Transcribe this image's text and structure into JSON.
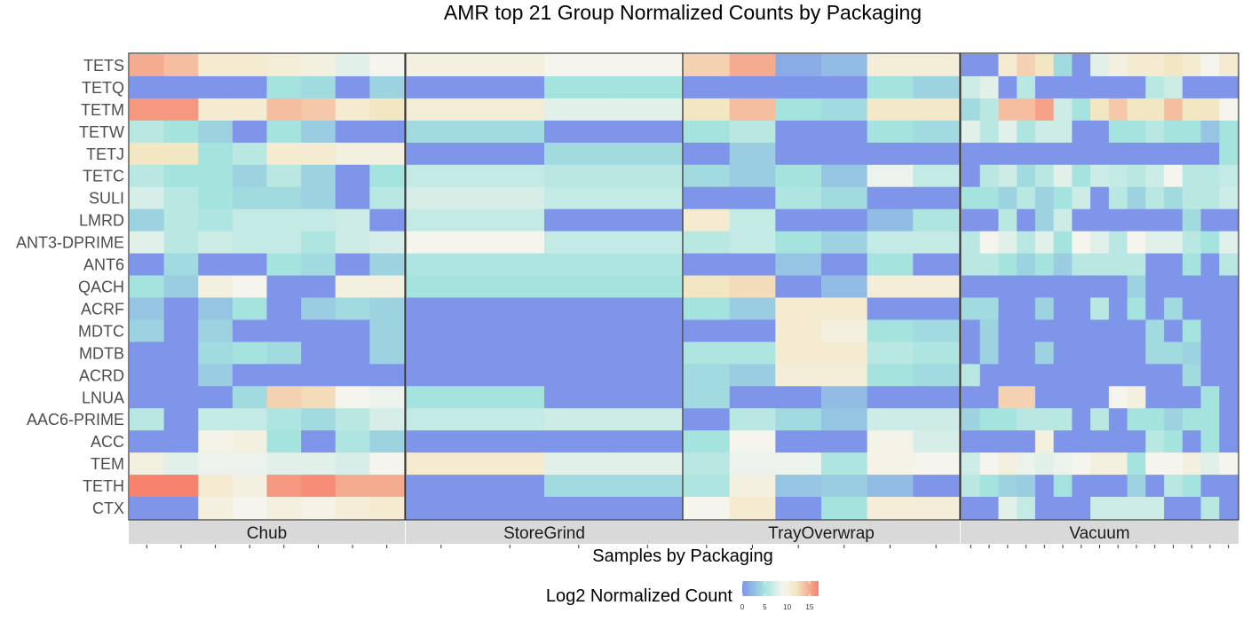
{
  "chart_data": {
    "type": "heatmap",
    "title": "AMR top 21 Group Normalized Counts by Packaging",
    "xlabel": "Samples by Packaging",
    "ylabel": "",
    "legend": {
      "title": "Log2 Normalized Count",
      "ticks": [
        0,
        5,
        10,
        15
      ],
      "range": [
        0,
        17
      ],
      "placement": "bottom",
      "colors": [
        "#7f95ea",
        "#a5e3de",
        "#f5f5ee",
        "#f3e6c2",
        "#f7836f"
      ]
    },
    "rows": [
      "TETS",
      "TETQ",
      "TETM",
      "TETW",
      "TETJ",
      "TETC",
      "SULI",
      "LMRD",
      "ANT3-DPRIME",
      "ANT6",
      "QACH",
      "ACRF",
      "MDTC",
      "MDTB",
      "ACRD",
      "LNUA",
      "AAC6-PRIME",
      "ACC",
      "TEM",
      "TETH",
      "CTX"
    ],
    "panels": [
      {
        "name": "Chub",
        "n_samples": 8,
        "values": [
          [
            15,
            14,
            11,
            11,
            10.5,
            10,
            8,
            9
          ],
          [
            0,
            0,
            0,
            0,
            5,
            4.5,
            0,
            4
          ],
          [
            16,
            16,
            11,
            11,
            14,
            13.5,
            11,
            12
          ],
          [
            6,
            5,
            4,
            0,
            5,
            3.5,
            0,
            0
          ],
          [
            12,
            12,
            5,
            6,
            11,
            11,
            10,
            10
          ],
          [
            6,
            5,
            5,
            4,
            6,
            4,
            0,
            5
          ],
          [
            7.5,
            6,
            5,
            4.5,
            4.5,
            4,
            0,
            6
          ],
          [
            4,
            6,
            5.5,
            6.5,
            6.5,
            6.5,
            7,
            0
          ],
          [
            8,
            6,
            7,
            6.5,
            6.5,
            5.5,
            7,
            7.5
          ],
          [
            0,
            4.5,
            0,
            0,
            5,
            4.5,
            0,
            4
          ],
          [
            5,
            3.5,
            10,
            9,
            0,
            0,
            10,
            10
          ],
          [
            3,
            0,
            3,
            5,
            0,
            3.5,
            4.5,
            4
          ],
          [
            4,
            0,
            4,
            0,
            0,
            0,
            0,
            4
          ],
          [
            0,
            0,
            4.5,
            5,
            4.5,
            0,
            0,
            4
          ],
          [
            0,
            0,
            3.5,
            0,
            0,
            0,
            0,
            0
          ],
          [
            0,
            0,
            0,
            4.5,
            13,
            12.5,
            9,
            8.5
          ],
          [
            6,
            0,
            6.5,
            6.5,
            5.5,
            4.5,
            6,
            7.5
          ],
          [
            0,
            0,
            9.5,
            10,
            5,
            0,
            5.5,
            4
          ],
          [
            10,
            8,
            8.5,
            8.5,
            8,
            8,
            7.5,
            9
          ],
          [
            17,
            17,
            11,
            10,
            16,
            16.5,
            15,
            15
          ],
          [
            0,
            0,
            10,
            9,
            10,
            9.5,
            10.5,
            11
          ]
        ]
      },
      {
        "name": "StoreGrind",
        "n_samples": 4,
        "values": [
          [
            10,
            10,
            9,
            9
          ],
          [
            0,
            0,
            5,
            5
          ],
          [
            10.5,
            10.5,
            8,
            8
          ],
          [
            4.5,
            4.5,
            0,
            0
          ],
          [
            0,
            0,
            4.5,
            4.5
          ],
          [
            6.5,
            6.5,
            6,
            6
          ],
          [
            7.5,
            7.5,
            6.5,
            6.5
          ],
          [
            6.5,
            6.5,
            0,
            0
          ],
          [
            9,
            9,
            6.5,
            6.5
          ],
          [
            5.5,
            5.5,
            5.5,
            5.5
          ],
          [
            5,
            5,
            5,
            5
          ],
          [
            0,
            0,
            0,
            0
          ],
          [
            0,
            0,
            0,
            0
          ],
          [
            0,
            0,
            0,
            0
          ],
          [
            0,
            0,
            0,
            0
          ],
          [
            5,
            5,
            0,
            0
          ],
          [
            6.5,
            6.5,
            7,
            7
          ],
          [
            0,
            0,
            0,
            0
          ],
          [
            11,
            11,
            8,
            8
          ],
          [
            0,
            0,
            4.5,
            4.5
          ],
          [
            0,
            0,
            0,
            0
          ]
        ]
      },
      {
        "name": "TrayOverwrap",
        "n_samples": 6,
        "values": [
          [
            13,
            15,
            1.5,
            2.5,
            10.5,
            10.5
          ],
          [
            0,
            0,
            0,
            0,
            5,
            4
          ],
          [
            12,
            14,
            5,
            4.5,
            11.5,
            11.5
          ],
          [
            5,
            6,
            0,
            0,
            5,
            4.5
          ],
          [
            0,
            3.5,
            0,
            0,
            0,
            0
          ],
          [
            4.5,
            3.5,
            5,
            3,
            8.5,
            6.5
          ],
          [
            0,
            0,
            5.5,
            4.5,
            0,
            0
          ],
          [
            11,
            6.5,
            0,
            0,
            2.5,
            5.5
          ],
          [
            6,
            6.5,
            5,
            4,
            6.5,
            6.5
          ],
          [
            0,
            0,
            3,
            0,
            5,
            0
          ],
          [
            12,
            12.5,
            0,
            2.5,
            10.5,
            10.5
          ],
          [
            5,
            3.5,
            11,
            11,
            0,
            0
          ],
          [
            0,
            0,
            11,
            10,
            5,
            4.5
          ],
          [
            5.5,
            5.5,
            11,
            11,
            6,
            5.5
          ],
          [
            4.5,
            3.5,
            10.5,
            10.5,
            5,
            4.5
          ],
          [
            4.5,
            0,
            0,
            2.5,
            0,
            0
          ],
          [
            0,
            6,
            4.5,
            3,
            7,
            7
          ],
          [
            5,
            9,
            0,
            0,
            9.5,
            7.5
          ],
          [
            6,
            8.5,
            8.5,
            5.5,
            9.5,
            9
          ],
          [
            5.5,
            10,
            3,
            3.5,
            2.5,
            0
          ],
          [
            9,
            11,
            0,
            5,
            10.5,
            10.5
          ]
        ]
      },
      {
        "name": "Vacuum",
        "n_samples": 15,
        "values": [
          [
            0,
            0,
            11,
            13,
            12,
            4.5,
            0,
            8,
            10,
            11,
            11,
            12,
            11,
            9,
            11
          ],
          [
            7,
            8,
            0,
            6,
            0,
            0,
            0,
            0,
            0,
            0,
            6,
            7,
            0,
            0,
            0
          ],
          [
            4.5,
            6,
            14,
            14,
            15.5,
            7,
            5,
            12,
            13.5,
            12,
            12,
            14,
            12,
            12,
            9
          ],
          [
            8,
            6,
            8,
            5.5,
            7,
            7,
            0,
            0,
            5,
            5,
            6,
            5,
            5,
            3,
            5
          ],
          [
            0,
            0,
            0,
            0,
            0,
            0,
            0,
            0,
            0,
            0,
            0,
            0,
            0,
            0,
            5
          ],
          [
            0,
            6,
            7,
            4.5,
            6,
            8,
            5,
            7,
            6.5,
            6,
            7,
            9,
            6,
            6,
            6.5
          ],
          [
            5,
            5,
            4,
            6,
            4,
            5,
            7,
            0,
            6,
            4,
            6,
            4.5,
            6,
            6,
            7
          ],
          [
            0,
            0,
            6,
            0,
            4,
            7,
            0,
            0,
            0,
            0,
            0,
            0,
            4.5,
            0,
            0
          ],
          [
            6,
            9,
            8,
            6,
            8,
            5,
            9,
            8,
            6,
            9,
            8,
            8,
            6,
            5,
            8
          ],
          [
            6,
            6,
            5,
            4,
            5,
            3.5,
            6,
            6,
            6,
            6,
            0,
            0,
            5,
            0,
            6
          ],
          [
            0,
            0,
            0,
            0,
            0,
            0,
            0,
            0,
            0,
            4,
            0,
            0,
            0,
            0,
            0
          ],
          [
            4.5,
            4.5,
            0,
            0,
            4,
            0,
            0,
            6,
            0,
            5,
            0,
            4.5,
            0,
            0,
            0
          ],
          [
            0,
            4,
            0,
            0,
            0,
            0,
            0,
            0,
            0,
            0,
            4.5,
            0,
            5,
            0,
            0
          ],
          [
            0,
            4,
            0,
            0,
            4,
            0,
            0,
            0,
            0,
            0,
            4.5,
            4.5,
            4,
            0,
            0
          ],
          [
            6,
            0,
            0,
            0,
            0,
            0,
            0,
            0,
            0,
            0,
            0,
            0,
            4.5,
            0,
            0
          ],
          [
            0,
            0,
            13,
            13,
            0,
            0,
            0,
            0,
            9,
            10,
            0,
            0,
            0,
            5,
            0
          ],
          [
            4,
            5,
            5,
            6,
            6,
            6,
            0,
            6,
            0,
            5,
            5,
            4,
            5,
            5,
            0
          ],
          [
            0,
            0,
            0,
            0,
            10,
            0,
            0,
            0,
            0,
            0,
            6,
            5,
            0,
            5,
            0
          ],
          [
            7,
            9,
            10,
            8.5,
            8,
            8.5,
            9,
            10,
            10,
            5,
            9,
            9,
            10,
            8,
            9
          ],
          [
            6,
            5,
            4,
            3.5,
            0,
            5,
            0,
            0,
            0,
            4,
            0,
            6,
            5,
            0,
            0
          ],
          [
            0,
            0,
            8,
            6.5,
            0,
            0,
            0,
            7,
            7,
            7,
            7,
            0,
            0,
            6,
            0
          ]
        ]
      }
    ]
  }
}
